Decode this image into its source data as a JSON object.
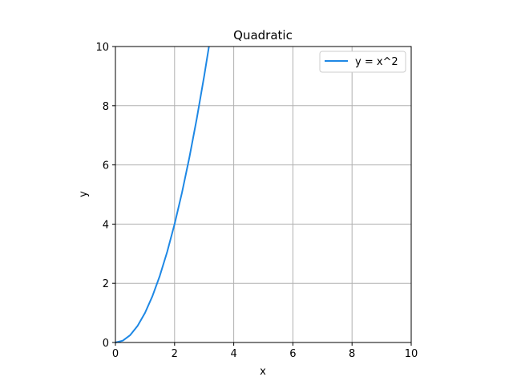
{
  "chart_data": {
    "type": "line",
    "title": "Quadratic",
    "xlabel": "x",
    "ylabel": "y",
    "xlim": [
      0,
      10
    ],
    "ylim": [
      0,
      10
    ],
    "grid": true,
    "legend_position": "top-right",
    "x_ticks": [
      "0",
      "2",
      "4",
      "6",
      "8",
      "10"
    ],
    "y_ticks": [
      "0",
      "2",
      "4",
      "6",
      "8",
      "10"
    ],
    "series": [
      {
        "name": "y = x^2",
        "color": "#1e88e5",
        "x": [
          0,
          0.25,
          0.5,
          0.75,
          1,
          1.25,
          1.5,
          1.75,
          2,
          2.25,
          2.5,
          2.75,
          3,
          3.1623
        ],
        "y": [
          0,
          0.0625,
          0.25,
          0.5625,
          1,
          1.5625,
          2.25,
          3.0625,
          4,
          5.0625,
          6.25,
          7.5625,
          9,
          10
        ]
      }
    ]
  }
}
